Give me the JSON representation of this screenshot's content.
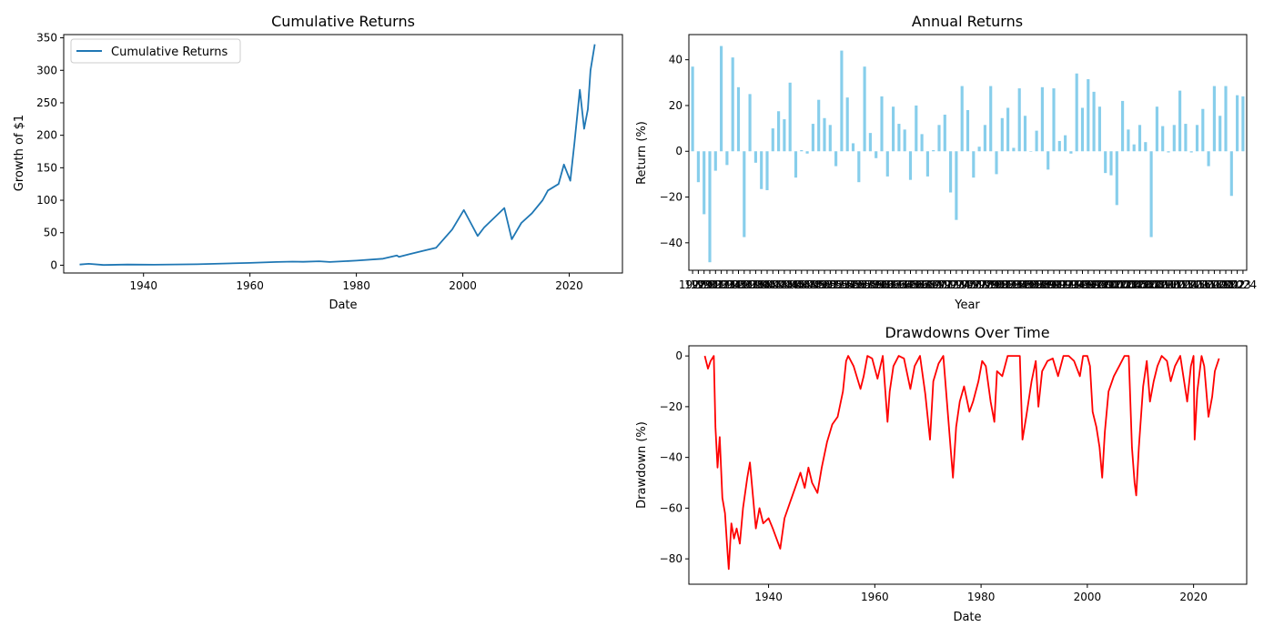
{
  "chart_data": [
    {
      "type": "line",
      "title": "Cumulative Returns",
      "xlabel": "Date",
      "ylabel": "Growth of $1",
      "xlim": [
        1925,
        2030
      ],
      "ylim": [
        -12,
        355
      ],
      "xticks": [
        1940,
        1960,
        1980,
        2000,
        2020
      ],
      "yticks": [
        0,
        50,
        100,
        150,
        200,
        250,
        300,
        350
      ],
      "legend": {
        "position": "top-left",
        "entries": [
          "Cumulative Returns"
        ]
      },
      "colors": {
        "line": "#1f77b4"
      },
      "grid": false,
      "series": [
        {
          "name": "Cumulative Returns",
          "x": [
            1928,
            1929.7,
            1932.5,
            1937,
            1942,
            1950,
            1955,
            1960,
            1965,
            1968,
            1970,
            1973,
            1975,
            1980,
            1985,
            1987.6,
            1988,
            1990,
            1993,
            1995,
            1998,
            2000.2,
            2001.5,
            2002.8,
            2004,
            2007.8,
            2009.2,
            2011,
            2013,
            2015,
            2016,
            2018,
            2019,
            2020.2,
            2021,
            2022,
            2022.8,
            2023.5,
            2024,
            2024.8
          ],
          "y": [
            1,
            2.2,
            0.3,
            1,
            0.8,
            1.5,
            2.5,
            3.5,
            5,
            5.5,
            5.2,
            6,
            5,
            7,
            10,
            15,
            13,
            17,
            23,
            27,
            55,
            85,
            65,
            45,
            58,
            88,
            40,
            65,
            80,
            100,
            115,
            125,
            155,
            130,
            190,
            270,
            210,
            240,
            300,
            340
          ]
        }
      ]
    },
    {
      "type": "bar",
      "title": "Annual Returns",
      "xlabel": "Year",
      "ylabel": "Return (%)",
      "ylim": [
        -52,
        51
      ],
      "yticks": [
        -40,
        -20,
        0,
        20,
        40
      ],
      "x_tick_note": "1928–2024, year labels overlapping",
      "colors": {
        "bar": "#87ceeb"
      },
      "grid": false,
      "categories": [
        "1928",
        "1929",
        "1930",
        "1931",
        "1932",
        "1933",
        "1934",
        "1935",
        "1936",
        "1937",
        "1938",
        "1939",
        "1940",
        "1941",
        "1942",
        "1943",
        "1944",
        "1945",
        "1946",
        "1947",
        "1948",
        "1949",
        "1950",
        "1951",
        "1952",
        "1953",
        "1954",
        "1955",
        "1956",
        "1957",
        "1958",
        "1959",
        "1960",
        "1961",
        "1962",
        "1963",
        "1964",
        "1965",
        "1966",
        "1967",
        "1968",
        "1969",
        "1970",
        "1971",
        "1972",
        "1973",
        "1974",
        "1975",
        "1976",
        "1977",
        "1978",
        "1979",
        "1980",
        "1981",
        "1982",
        "1983",
        "1984",
        "1985",
        "1986",
        "1987",
        "1988",
        "1989",
        "1990",
        "1991",
        "1992",
        "1993",
        "1994",
        "1995",
        "1996",
        "1997",
        "1998",
        "1999",
        "2000",
        "2001",
        "2002",
        "2003",
        "2004",
        "2005",
        "2006",
        "2007",
        "2008",
        "2009",
        "2010",
        "2011",
        "2012",
        "2013",
        "2014",
        "2015",
        "2016",
        "2017",
        "2018",
        "2019",
        "2020",
        "2021",
        "2022",
        "2023",
        "2024"
      ],
      "values": [
        37,
        -13.5,
        -27.5,
        -48.5,
        -8.5,
        46,
        -6,
        41,
        28,
        -37.5,
        25,
        -5,
        -16.5,
        -17,
        10,
        17.5,
        14,
        30,
        -11.5,
        0.5,
        -1,
        12,
        22.5,
        14.5,
        11.5,
        -6.5,
        44,
        23.5,
        3.5,
        -13.5,
        37,
        8,
        -3,
        24,
        -11,
        19.5,
        12,
        9.5,
        -12.5,
        20,
        7.5,
        -11,
        0.5,
        11.5,
        16,
        -18,
        -30,
        28.5,
        18,
        -11.5,
        2,
        11.5,
        28.5,
        -10,
        14.5,
        19,
        1.5,
        27.5,
        15.5,
        0,
        9,
        28,
        -8,
        27.5,
        4.5,
        7,
        -1,
        34,
        19,
        31.5,
        26,
        19.5,
        -9.5,
        -10.5,
        -23.5,
        22,
        9.5,
        3,
        11.5,
        4,
        -37.5,
        19.5,
        11,
        -0.5,
        11.5,
        26.5,
        12,
        -0.5,
        11.5,
        18.5,
        -6.5,
        28.5,
        15.5,
        28.5,
        -19.5,
        24.5,
        24
      ]
    },
    {
      "type": "line",
      "title": "Drawdowns Over Time",
      "xlabel": "Date",
      "ylabel": "Drawdown (%)",
      "xlim": [
        1925,
        2030
      ],
      "ylim": [
        -90,
        4
      ],
      "xticks": [
        1940,
        1960,
        1980,
        2000,
        2020
      ],
      "yticks": [
        -80,
        -60,
        -40,
        -20,
        0
      ],
      "colors": {
        "line": "#ff0000"
      },
      "grid": false,
      "series": [
        {
          "x": [
            1928,
            1928.6,
            1929.1,
            1929.7,
            1930,
            1930.4,
            1930.8,
            1931.3,
            1931.8,
            1932.3,
            1932.5,
            1933,
            1933.5,
            1934,
            1934.6,
            1935.2,
            1936,
            1936.5,
            1937.1,
            1937.6,
            1938.3,
            1939,
            1940,
            1940.8,
            1941.5,
            1942.2,
            1943,
            1944,
            1945,
            1946,
            1946.8,
            1947.5,
            1948.2,
            1949.2,
            1950,
            1951,
            1952,
            1953,
            1954,
            1954.6,
            1955,
            1956,
            1957.3,
            1957.9,
            1958.6,
            1959.5,
            1960.5,
            1961.5,
            1962.4,
            1962.8,
            1963.5,
            1964.5,
            1965.5,
            1966.7,
            1967.5,
            1968.5,
            1969.5,
            1970.4,
            1971,
            1972,
            1972.9,
            1973.8,
            1974.7,
            1975.3,
            1976,
            1976.8,
            1977.8,
            1978.5,
            1979.5,
            1980.2,
            1980.9,
            1981.8,
            1982.5,
            1983,
            1984,
            1985,
            1986,
            1987.3,
            1987.8,
            1988.5,
            1989.5,
            1990.3,
            1990.8,
            1991.5,
            1992.5,
            1993.5,
            1994.5,
            1995.5,
            1996.5,
            1997.5,
            1998.6,
            1999.2,
            2000,
            2000.5,
            2001,
            2001.7,
            2002.3,
            2002.8,
            2003.3,
            2004,
            2005,
            2006,
            2007,
            2007.8,
            2008.4,
            2008.9,
            2009.2,
            2009.7,
            2010.5,
            2011.2,
            2011.8,
            2012.5,
            2013.2,
            2014,
            2015,
            2015.7,
            2016.5,
            2017.5,
            2018.8,
            2019.5,
            2020,
            2020.2,
            2020.7,
            2021.5,
            2022,
            2022.8,
            2023.5,
            2024,
            2024.8
          ],
          "y": [
            0,
            -5,
            -2,
            0,
            -28,
            -44,
            -32,
            -56,
            -62,
            -78,
            -84,
            -66,
            -72,
            -68,
            -74,
            -60,
            -48,
            -42,
            -56,
            -68,
            -60,
            -66,
            -64,
            -68,
            -72,
            -76,
            -64,
            -58,
            -52,
            -46,
            -52,
            -44,
            -50,
            -54,
            -44,
            -34,
            -27,
            -24,
            -14,
            -2,
            0,
            -4,
            -13,
            -8,
            0,
            -1,
            -9,
            0,
            -26,
            -14,
            -4,
            0,
            -1,
            -13,
            -4,
            0,
            -15,
            -33,
            -10,
            -3,
            0,
            -24,
            -48,
            -28,
            -18,
            -12,
            -22,
            -18,
            -10,
            -2,
            -4,
            -18,
            -26,
            -6,
            -8,
            0,
            0,
            0,
            -33,
            -24,
            -10,
            -2,
            -20,
            -6,
            -2,
            -1,
            -8,
            0,
            0,
            -2,
            -8,
            0,
            0,
            -4,
            -22,
            -28,
            -36,
            -48,
            -30,
            -14,
            -8,
            -4,
            0,
            0,
            -36,
            -50,
            -55,
            -36,
            -12,
            -2,
            -18,
            -10,
            -4,
            0,
            -2,
            -10,
            -4,
            0,
            -18,
            -4,
            0,
            -33,
            -14,
            0,
            -4,
            -24,
            -16,
            -6,
            -1
          ]
        }
      ]
    }
  ]
}
